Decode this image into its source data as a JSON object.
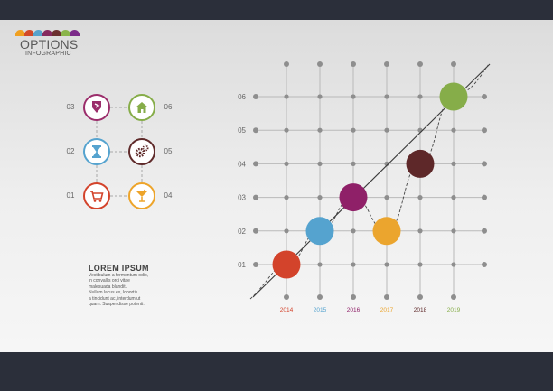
{
  "header": {
    "title": "OPTIONS",
    "subtitle": "INFOGRAPHIC",
    "swatches": [
      "#f0a020",
      "#d24a2a",
      "#57a3cc",
      "#852a5f",
      "#6b2f2f",
      "#8ab44a",
      "#7c2a8a"
    ]
  },
  "options": [
    {
      "num": "03",
      "icon": "shield-arrow-icon",
      "color": "#9b2d6b"
    },
    {
      "num": "06",
      "icon": "home-icon",
      "color": "#86ad49"
    },
    {
      "num": "02",
      "icon": "hourglass-icon",
      "color": "#55a3cf"
    },
    {
      "num": "05",
      "icon": "gears-icon",
      "color": "#5f2a2a"
    },
    {
      "num": "01",
      "icon": "cart-icon",
      "color": "#d3432b"
    },
    {
      "num": "04",
      "icon": "cocktail-icon",
      "color": "#eda42a"
    }
  ],
  "lorem": {
    "title": "LOREM IPSUM",
    "lines": [
      "Vestibulum a fermentum odio,",
      "in convallis orci vitae",
      "malesuada blandit.",
      "Nullam lacus ex, lobortis",
      "a tincidunt ac, interdum ut",
      "quam. Suspendisse potenti."
    ]
  },
  "chart_data": {
    "type": "scatter",
    "x": [
      "2014",
      "2015",
      "2016",
      "2017",
      "2018",
      "2019"
    ],
    "y_ticks": [
      "01",
      "02",
      "03",
      "04",
      "05",
      "06"
    ],
    "points": [
      {
        "x": "2014",
        "y": 1,
        "color": "#d3432b"
      },
      {
        "x": "2015",
        "y": 2,
        "color": "#55a3cf"
      },
      {
        "x": "2016",
        "y": 3,
        "color": "#8f2068"
      },
      {
        "x": "2017",
        "y": 2,
        "color": "#eba52e"
      },
      {
        "x": "2018",
        "y": 4,
        "color": "#5e2829"
      },
      {
        "x": "2019",
        "y": 6,
        "color": "#86ad49"
      }
    ],
    "x_label_colors": [
      "#d3432b",
      "#55a3cf",
      "#8f2068",
      "#eba52e",
      "#5e2829",
      "#86ad49"
    ],
    "grid": true
  }
}
